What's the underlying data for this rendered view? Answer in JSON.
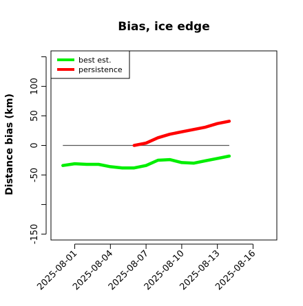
{
  "chart_data": {
    "type": "line",
    "title": "Bias, ice edge",
    "xlabel": "",
    "ylabel": "Distance bias (km)",
    "x_type": "date",
    "xlim": [
      "2025-07-30",
      "2025-08-18"
    ],
    "ylim": [
      -160,
      160
    ],
    "x_ticks": [
      "2025-08-01",
      "2025-08-04",
      "2025-08-07",
      "2025-08-10",
      "2025-08-13",
      "2025-08-16"
    ],
    "y_ticks": [
      -150,
      -100,
      -50,
      0,
      50,
      100,
      150
    ],
    "y_tick_labels": [
      "-150",
      "",
      "-50",
      "0",
      "50",
      "100",
      ""
    ],
    "grid": false,
    "legend_position": "top-left",
    "zero_line": {
      "y": 0,
      "from": "2025-07-31",
      "to": "2025-08-14",
      "color": "#555555"
    },
    "series": [
      {
        "name": "best est.",
        "color": "#00ee00",
        "x": [
          "2025-07-31",
          "2025-08-01",
          "2025-08-02",
          "2025-08-03",
          "2025-08-04",
          "2025-08-05",
          "2025-08-06",
          "2025-08-07",
          "2025-08-08",
          "2025-08-09",
          "2025-08-10",
          "2025-08-11",
          "2025-08-12",
          "2025-08-13",
          "2025-08-14"
        ],
        "y": [
          -34,
          -31,
          -32,
          -32,
          -36,
          -38,
          -38,
          -34,
          -25,
          -24,
          -29,
          -30,
          -26,
          -22,
          -18
        ]
      },
      {
        "name": "persistence",
        "color": "#ff0000",
        "x": [
          "2025-08-06",
          "2025-08-07",
          "2025-08-08",
          "2025-08-09",
          "2025-08-10",
          "2025-08-11",
          "2025-08-12",
          "2025-08-13",
          "2025-08-14"
        ],
        "y": [
          0,
          4,
          13,
          19,
          23,
          27,
          31,
          37,
          41
        ]
      }
    ]
  }
}
